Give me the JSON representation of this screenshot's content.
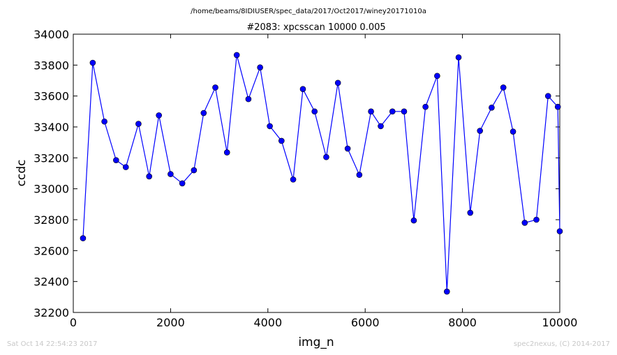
{
  "header": {
    "path": "/home/beams/8IDIUSER/spec_data/2017/Oct2017/winey20171010a",
    "title": "#2083: xpcsscan 10000 0.005"
  },
  "footer": {
    "timestamp": "Sat Oct 14 22:54:23 2017",
    "credit": "spec2nexus, (C) 2014-2017"
  },
  "colors": {
    "series": "#0000ff",
    "marker_fill": "#0000ff",
    "axes": "#000000",
    "footer_text": "#c8c8c8"
  },
  "chart_data": {
    "type": "line",
    "title": "#2083: xpcsscan 10000 0.005",
    "xlabel": "img_n",
    "ylabel": "ccdc",
    "xlim": [
      0,
      10000
    ],
    "ylim": [
      32200,
      34000
    ],
    "xticks": [
      0,
      2000,
      4000,
      6000,
      8000,
      10000
    ],
    "yticks": [
      32200,
      32400,
      32600,
      32800,
      33000,
      33200,
      33400,
      33600,
      33800,
      34000
    ],
    "grid": false,
    "marker": "circle",
    "series": [
      {
        "x": [
          200,
          400,
          640,
          880,
          1080,
          1340,
          1560,
          1760,
          2000,
          2240,
          2480,
          2680,
          2920,
          3160,
          3360,
          3600,
          3840,
          4040,
          4280,
          4520,
          4720,
          4960,
          5200,
          5440,
          5640,
          5880,
          6120,
          6320,
          6560,
          6800,
          7000,
          7240,
          7480,
          7680,
          7920,
          8160,
          8360,
          8600,
          8840,
          9040,
          9280,
          9520,
          9760,
          9960,
          10000
        ],
        "y": [
          32680,
          33815,
          33435,
          33185,
          33140,
          33420,
          33080,
          33475,
          33095,
          33035,
          33120,
          33490,
          33655,
          33235,
          33865,
          33580,
          33785,
          33405,
          33310,
          33060,
          33645,
          33500,
          33205,
          33685,
          33260,
          33090,
          33500,
          33405,
          33500,
          33500,
          32795,
          33530,
          33730,
          32335,
          33850,
          32845,
          33375,
          33525,
          33655,
          33370,
          32780,
          32800,
          33600,
          33530,
          32725
        ]
      }
    ]
  }
}
